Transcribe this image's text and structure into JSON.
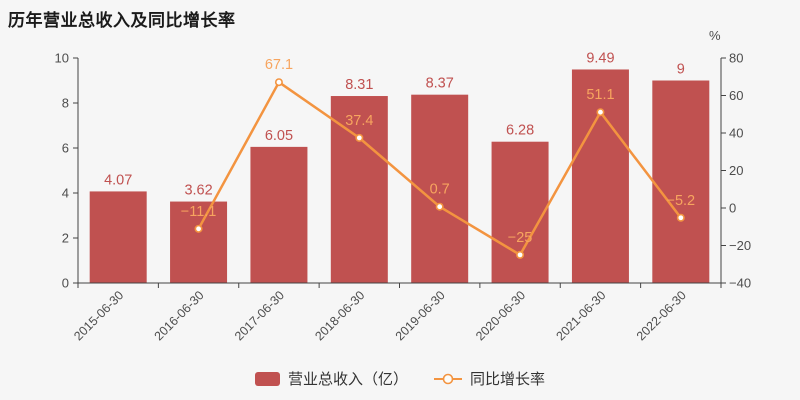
{
  "title": "历年营业总收入及同比增长率",
  "chart_data": {
    "type": "bar+line",
    "title": "历年营业总收入及同比增长率",
    "categories": [
      "2015-06-30",
      "2016-06-30",
      "2017-06-30",
      "2018-06-30",
      "2019-06-30",
      "2020-06-30",
      "2021-06-30",
      "2022-06-30"
    ],
    "series": [
      {
        "name": "营业总收入（亿）",
        "type": "bar",
        "color": "#c05150",
        "values": [
          4.07,
          3.62,
          6.05,
          8.31,
          8.37,
          6.28,
          9.49,
          9
        ],
        "labels": [
          "4.07",
          "3.62",
          "6.05",
          "8.31",
          "8.37",
          "6.28",
          "9.49",
          "9"
        ]
      },
      {
        "name": "同比增长率",
        "type": "line",
        "color": "#f39440",
        "label_color": "#f7a55f",
        "values": [
          null,
          -11.1,
          67.1,
          37.4,
          0.7,
          -25,
          51.1,
          -5.2
        ],
        "labels": [
          "",
          "−11.1",
          "67.1",
          "37.4",
          "0.7",
          "−25",
          "51.1",
          "−5.2"
        ]
      }
    ],
    "left_axis": {
      "min": 0,
      "max": 10,
      "ticks": [
        0,
        2,
        4,
        6,
        8,
        10
      ],
      "tick_labels": [
        "0",
        "2",
        "4",
        "6",
        "8",
        "10"
      ]
    },
    "right_axis": {
      "unit": "%",
      "min": -40,
      "max": 80,
      "ticks": [
        -40,
        -20,
        0,
        20,
        40,
        60,
        80
      ],
      "tick_labels": [
        "−40",
        "−20",
        "0",
        "20",
        "40",
        "60",
        "80"
      ]
    },
    "legend": [
      "营业总收入（亿）",
      "同比增长率"
    ],
    "legend_position": "bottom",
    "grid": false,
    "colors": {
      "background": "#f6f6f6",
      "axis_line": "#444444",
      "axis_text": "#4d4d4d",
      "bar": "#c05150",
      "line": "#f39440",
      "line_label": "#f7a55f",
      "title_text": "#1a1a1a"
    }
  }
}
